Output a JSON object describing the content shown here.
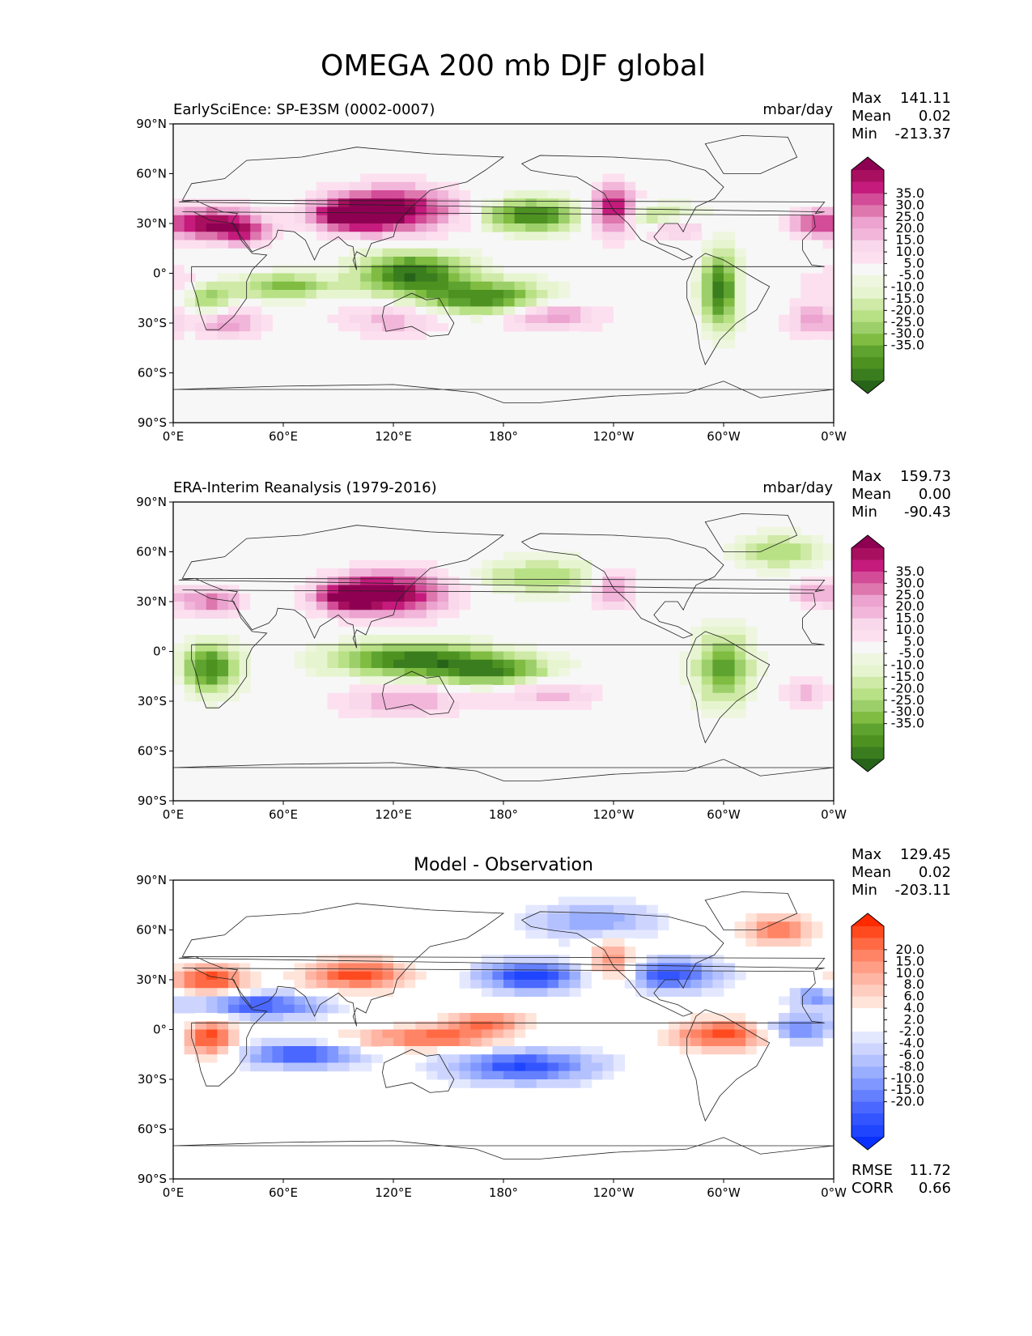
{
  "figure": {
    "title": "OMEGA 200 mb DJF global"
  },
  "axis_ticks": {
    "x": [
      "0°E",
      "60°E",
      "120°E",
      "180°",
      "120°W",
      "60°W",
      "0°W"
    ],
    "y": [
      "90°N",
      "60°N",
      "30°N",
      "0°",
      "30°S",
      "60°S",
      "90°S"
    ]
  },
  "chart_data": [
    {
      "type": "heatmap",
      "title": "EarlySciEnce: SP-E3SM (0002-0007)",
      "units": "mbar/day",
      "stats": {
        "max_label": "Max",
        "max": "141.11",
        "mean_label": "Mean",
        "mean": "0.02",
        "min_label": "Min",
        "min": "-213.37"
      },
      "xlim": [
        0,
        360
      ],
      "ylim": [
        -90,
        90
      ],
      "colorbar": {
        "labels": [
          "35.0",
          "30.0",
          "25.0",
          "20.0",
          "15.0",
          "10.0",
          "5.0",
          "-5.0",
          "-10.0",
          "-15.0",
          "-20.0",
          "-25.0",
          "-30.0",
          "-35.0"
        ],
        "colors": [
          "#8e0152",
          "#a8105f",
          "#c51b7d",
          "#d34c97",
          "#de77ae",
          "#eca3cf",
          "#f1b6da",
          "#f8d8ea",
          "#fde0ef",
          "#f7f7f7",
          "#eef6e0",
          "#e6f5d0",
          "#cfe9a6",
          "#b8e186",
          "#9ccf6a",
          "#7fbc41",
          "#5ea330",
          "#4d9221",
          "#3a7d1e",
          "#276419"
        ]
      }
    },
    {
      "type": "heatmap",
      "title": "ERA-Interim Reanalysis (1979-2016)",
      "units": "mbar/day",
      "stats": {
        "max_label": "Max",
        "max": "159.73",
        "mean_label": "Mean",
        "mean": "0.00",
        "min_label": "Min",
        "min": "-90.43"
      },
      "xlim": [
        0,
        360
      ],
      "ylim": [
        -90,
        90
      ],
      "colorbar": {
        "labels": [
          "35.0",
          "30.0",
          "25.0",
          "20.0",
          "15.0",
          "10.0",
          "5.0",
          "-5.0",
          "-10.0",
          "-15.0",
          "-20.0",
          "-25.0",
          "-30.0",
          "-35.0"
        ],
        "colors": [
          "#8e0152",
          "#a8105f",
          "#c51b7d",
          "#d34c97",
          "#de77ae",
          "#eca3cf",
          "#f1b6da",
          "#f8d8ea",
          "#fde0ef",
          "#f7f7f7",
          "#eef6e0",
          "#e6f5d0",
          "#cfe9a6",
          "#b8e186",
          "#9ccf6a",
          "#7fbc41",
          "#5ea330",
          "#4d9221",
          "#3a7d1e",
          "#276419"
        ]
      }
    },
    {
      "type": "heatmap",
      "title": "Model - Observation",
      "units": "",
      "stats": {
        "max_label": "Max",
        "max": "129.45",
        "mean_label": "Mean",
        "mean": "0.02",
        "min_label": "Min",
        "min": "-203.11",
        "rmse_label": "RMSE",
        "rmse": "11.72",
        "corr_label": "CORR",
        "corr": "0.66"
      },
      "xlim": [
        0,
        360
      ],
      "ylim": [
        -90,
        90
      ],
      "colorbar": {
        "labels": [
          "20.0",
          "15.0",
          "10.0",
          "8.0",
          "6.0",
          "4.0",
          "2.0",
          "-2.0",
          "-4.0",
          "-6.0",
          "-8.0",
          "-10.0",
          "-15.0",
          "-20.0"
        ],
        "colors": [
          "#ff2a00",
          "#ff4a20",
          "#ff6a45",
          "#ff8466",
          "#ff9d85",
          "#ffb5a3",
          "#ffcdc0",
          "#ffe4da",
          "#ffffff",
          "#ffffff",
          "#e4e8ff",
          "#cdd5ff",
          "#b3c1ff",
          "#9aaeff",
          "#7f97ff",
          "#6480ff",
          "#4a68ff",
          "#3355ff",
          "#1f45ff",
          "#0a30ff"
        ]
      }
    }
  ]
}
